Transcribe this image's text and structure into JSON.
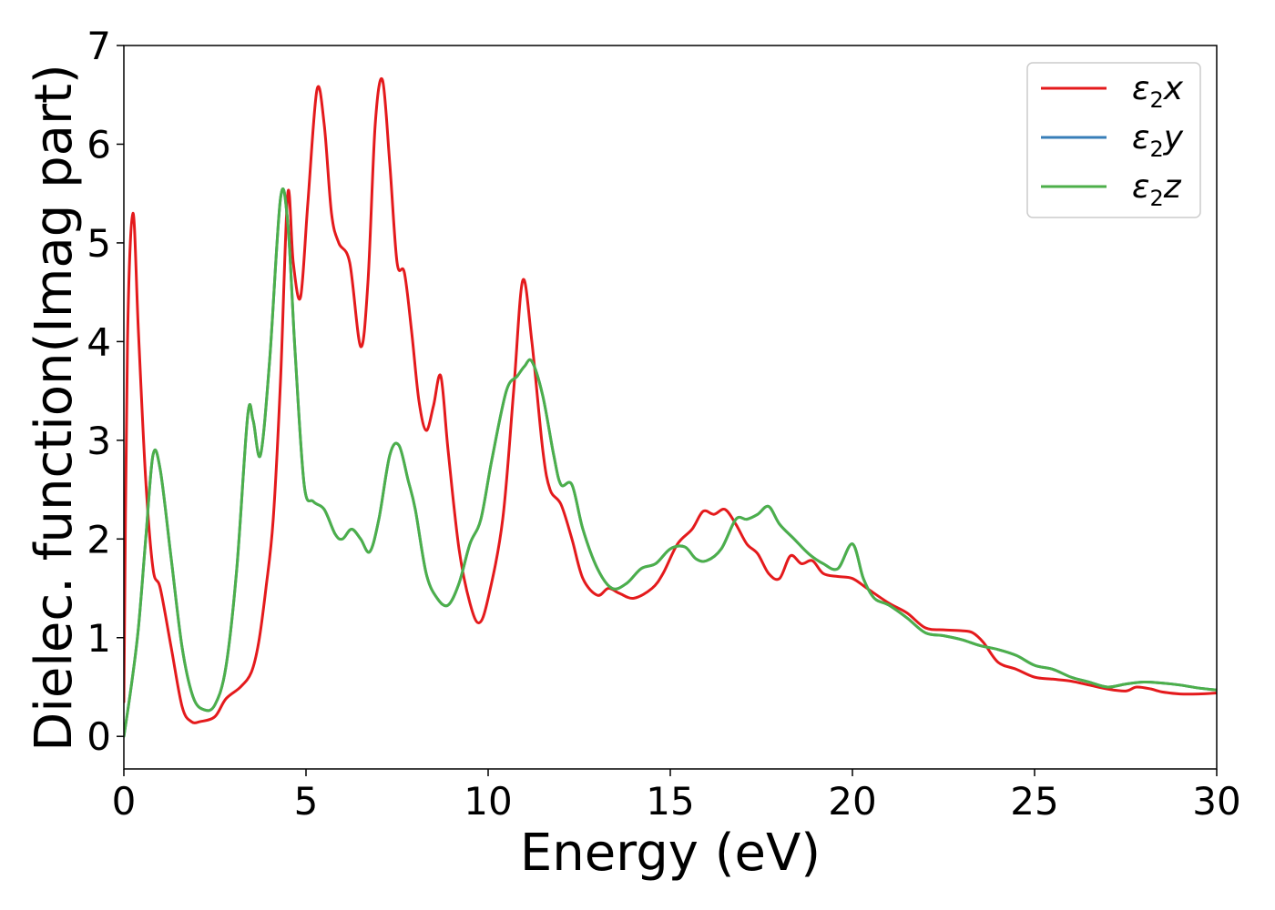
{
  "chart_data": {
    "type": "line",
    "xlabel": "Energy (eV)",
    "ylabel": "Dielec. function(Imag part)",
    "xlim": [
      0,
      30
    ],
    "ylim": [
      -0.33,
      7.0
    ],
    "xticks": [
      0,
      5,
      10,
      15,
      20,
      25,
      30
    ],
    "yticks": [
      0,
      1,
      2,
      3,
      4,
      5,
      6,
      7
    ],
    "grid": false,
    "legend_position": "top-right",
    "legend": [
      {
        "base": "ε",
        "sub": "2",
        "var": "x",
        "color": "#e41a1c"
      },
      {
        "base": "ε",
        "sub": "2",
        "var": "y",
        "color": "#377eb8"
      },
      {
        "base": "ε",
        "sub": "2",
        "var": "z",
        "color": "#4daf4a"
      }
    ],
    "series": [
      {
        "name": "ε2x",
        "color": "#e41a1c",
        "x": [
          0,
          0.1,
          0.25,
          0.4,
          0.6,
          0.8,
          1.0,
          1.3,
          1.6,
          1.85,
          2.1,
          2.5,
          2.8,
          3.2,
          3.5,
          3.7,
          3.9,
          4.1,
          4.3,
          4.5,
          4.65,
          4.85,
          5.05,
          5.3,
          5.5,
          5.7,
          5.9,
          6.2,
          6.5,
          6.7,
          6.9,
          7.1,
          7.3,
          7.5,
          7.7,
          7.9,
          8.1,
          8.3,
          8.5,
          8.7,
          8.9,
          9.2,
          9.5,
          9.75,
          10.0,
          10.4,
          10.7,
          10.95,
          11.2,
          11.5,
          11.7,
          12.0,
          12.3,
          12.6,
          13.0,
          13.3,
          13.6,
          14.0,
          14.5,
          14.8,
          15.2,
          15.6,
          15.9,
          16.2,
          16.5,
          16.8,
          17.1,
          17.4,
          17.7,
          18.0,
          18.3,
          18.6,
          18.9,
          19.2,
          19.6,
          20.0,
          20.4,
          21.0,
          21.5,
          22.0,
          22.5,
          23.0,
          23.3,
          23.6,
          24.0,
          24.5,
          25.0,
          25.5,
          26.0,
          26.5,
          27.0,
          27.5,
          27.8,
          28.2,
          28.5,
          29.0,
          29.5,
          30.0
        ],
        "y": [
          0.35,
          4.0,
          5.3,
          4.1,
          2.6,
          1.7,
          1.5,
          0.9,
          0.3,
          0.15,
          0.15,
          0.2,
          0.38,
          0.5,
          0.65,
          0.95,
          1.5,
          2.2,
          3.6,
          5.5,
          4.8,
          4.45,
          5.4,
          6.55,
          6.2,
          5.3,
          5.0,
          4.8,
          3.95,
          4.6,
          6.2,
          6.65,
          5.8,
          4.8,
          4.7,
          4.1,
          3.4,
          3.1,
          3.35,
          3.65,
          2.9,
          1.9,
          1.35,
          1.15,
          1.4,
          2.2,
          3.5,
          4.62,
          4.0,
          2.9,
          2.5,
          2.35,
          2.0,
          1.6,
          1.43,
          1.5,
          1.45,
          1.4,
          1.5,
          1.65,
          1.95,
          2.1,
          2.28,
          2.25,
          2.3,
          2.15,
          1.95,
          1.85,
          1.65,
          1.6,
          1.83,
          1.75,
          1.78,
          1.65,
          1.62,
          1.6,
          1.5,
          1.35,
          1.25,
          1.1,
          1.08,
          1.07,
          1.05,
          0.95,
          0.75,
          0.68,
          0.6,
          0.58,
          0.56,
          0.52,
          0.48,
          0.46,
          0.5,
          0.48,
          0.45,
          0.43,
          0.43,
          0.44
        ]
      },
      {
        "name": "ε2y",
        "color": "#377eb8",
        "x": [
          0,
          0.2,
          0.4,
          0.6,
          0.8,
          1.0,
          1.3,
          1.6,
          1.9,
          2.2,
          2.5,
          2.8,
          3.1,
          3.4,
          3.55,
          3.75,
          4.0,
          4.3,
          4.5,
          4.7,
          4.95,
          5.2,
          5.5,
          5.8,
          6.0,
          6.25,
          6.5,
          6.75,
          7.0,
          7.3,
          7.55,
          7.8,
          8.0,
          8.3,
          8.6,
          8.9,
          9.2,
          9.5,
          9.8,
          10.1,
          10.5,
          10.8,
          11.0,
          11.2,
          11.5,
          11.8,
          12.0,
          12.3,
          12.6,
          13.0,
          13.4,
          13.8,
          14.2,
          14.6,
          15.0,
          15.4,
          15.7,
          16.0,
          16.4,
          16.8,
          17.1,
          17.4,
          17.7,
          18.0,
          18.4,
          18.8,
          19.2,
          19.6,
          20.0,
          20.3,
          20.6,
          21.0,
          21.5,
          22.0,
          22.5,
          23.0,
          23.5,
          24.0,
          24.5,
          25.0,
          25.5,
          26.0,
          26.5,
          27.0,
          27.5,
          28.0,
          28.5,
          29.0,
          29.5,
          30.0
        ],
        "y": [
          0.0,
          0.5,
          1.1,
          2.0,
          2.85,
          2.7,
          1.8,
          0.9,
          0.4,
          0.27,
          0.32,
          0.7,
          1.7,
          3.25,
          3.2,
          2.85,
          3.8,
          5.45,
          5.2,
          3.9,
          2.55,
          2.38,
          2.3,
          2.05,
          2.0,
          2.1,
          2.0,
          1.87,
          2.2,
          2.85,
          2.95,
          2.6,
          2.3,
          1.65,
          1.4,
          1.33,
          1.55,
          1.95,
          2.2,
          2.8,
          3.5,
          3.65,
          3.75,
          3.8,
          3.45,
          2.85,
          2.55,
          2.55,
          2.1,
          1.7,
          1.5,
          1.55,
          1.7,
          1.75,
          1.9,
          1.92,
          1.8,
          1.78,
          1.9,
          2.2,
          2.2,
          2.25,
          2.33,
          2.15,
          2.0,
          1.85,
          1.75,
          1.7,
          1.95,
          1.6,
          1.4,
          1.33,
          1.2,
          1.05,
          1.02,
          0.98,
          0.92,
          0.88,
          0.82,
          0.72,
          0.68,
          0.6,
          0.55,
          0.5,
          0.53,
          0.55,
          0.54,
          0.52,
          0.49,
          0.47
        ]
      },
      {
        "name": "ε2z",
        "color": "#4daf4a",
        "x": [
          0,
          0.2,
          0.4,
          0.6,
          0.8,
          1.0,
          1.3,
          1.6,
          1.9,
          2.2,
          2.5,
          2.8,
          3.1,
          3.4,
          3.55,
          3.75,
          4.0,
          4.3,
          4.5,
          4.7,
          4.95,
          5.2,
          5.5,
          5.8,
          6.0,
          6.25,
          6.5,
          6.75,
          7.0,
          7.3,
          7.55,
          7.8,
          8.0,
          8.3,
          8.6,
          8.9,
          9.2,
          9.5,
          9.8,
          10.1,
          10.5,
          10.8,
          11.0,
          11.2,
          11.5,
          11.8,
          12.0,
          12.3,
          12.6,
          13.0,
          13.4,
          13.8,
          14.2,
          14.6,
          15.0,
          15.4,
          15.7,
          16.0,
          16.4,
          16.8,
          17.1,
          17.4,
          17.7,
          18.0,
          18.4,
          18.8,
          19.2,
          19.6,
          20.0,
          20.3,
          20.6,
          21.0,
          21.5,
          22.0,
          22.5,
          23.0,
          23.5,
          24.0,
          24.5,
          25.0,
          25.5,
          26.0,
          26.5,
          27.0,
          27.5,
          28.0,
          28.5,
          29.0,
          29.5,
          30.0
        ],
        "y": [
          0.0,
          0.5,
          1.1,
          2.0,
          2.85,
          2.7,
          1.8,
          0.9,
          0.4,
          0.27,
          0.32,
          0.7,
          1.7,
          3.25,
          3.2,
          2.85,
          3.8,
          5.45,
          5.2,
          3.9,
          2.55,
          2.38,
          2.3,
          2.05,
          2.0,
          2.1,
          2.0,
          1.87,
          2.2,
          2.85,
          2.95,
          2.6,
          2.3,
          1.65,
          1.4,
          1.33,
          1.55,
          1.95,
          2.2,
          2.8,
          3.5,
          3.65,
          3.75,
          3.8,
          3.45,
          2.85,
          2.55,
          2.55,
          2.1,
          1.7,
          1.5,
          1.55,
          1.7,
          1.75,
          1.9,
          1.92,
          1.8,
          1.78,
          1.9,
          2.2,
          2.2,
          2.25,
          2.33,
          2.15,
          2.0,
          1.85,
          1.75,
          1.7,
          1.95,
          1.6,
          1.4,
          1.33,
          1.2,
          1.05,
          1.02,
          0.98,
          0.92,
          0.88,
          0.82,
          0.72,
          0.68,
          0.6,
          0.55,
          0.5,
          0.53,
          0.55,
          0.54,
          0.52,
          0.49,
          0.47
        ]
      }
    ]
  }
}
